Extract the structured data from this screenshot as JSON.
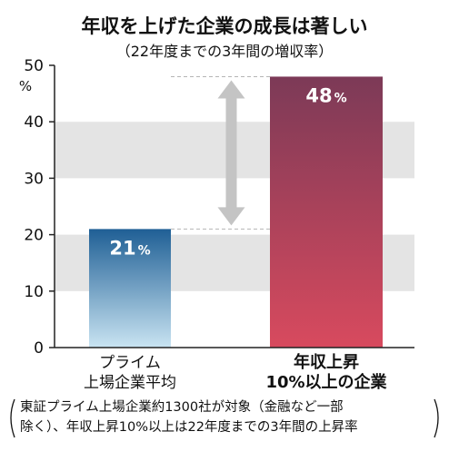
{
  "chart_data": {
    "type": "bar",
    "title": "年収を上げた企業の成長は著しい",
    "subtitle": "（22年度までの3年間の増収率）",
    "unit": "%",
    "ylim": [
      0,
      50
    ],
    "ticks": [
      0,
      10,
      20,
      30,
      40,
      50
    ],
    "categories": [
      {
        "lines": [
          "プライム",
          "上場企業平均"
        ],
        "bold": false
      },
      {
        "lines": [
          "年収上昇",
          "10%以上の企業"
        ],
        "bold": true
      }
    ],
    "values": [
      21,
      48
    ],
    "value_labels": [
      {
        "num": "21",
        "pct": "%"
      },
      {
        "num": "48",
        "pct": "%"
      }
    ],
    "colors": {
      "bar1_top": "#1f5f95",
      "bar1_bottom": "#c9e4f2",
      "bar2_top": "#7c3a57",
      "bar2_bottom": "#d84a5e",
      "band": "#e4e4e4",
      "arrow": "#c4c4c4"
    },
    "grid_bands": [
      [
        10,
        20
      ],
      [
        30,
        40
      ]
    ],
    "arrow": {
      "from": 21,
      "to": 48
    }
  },
  "note": {
    "lines": [
      "東証プライム上場企業約1300社が対象（金融など一部",
      "除く）、年収上昇10%以上は22年度までの3年間の上昇率"
    ]
  }
}
